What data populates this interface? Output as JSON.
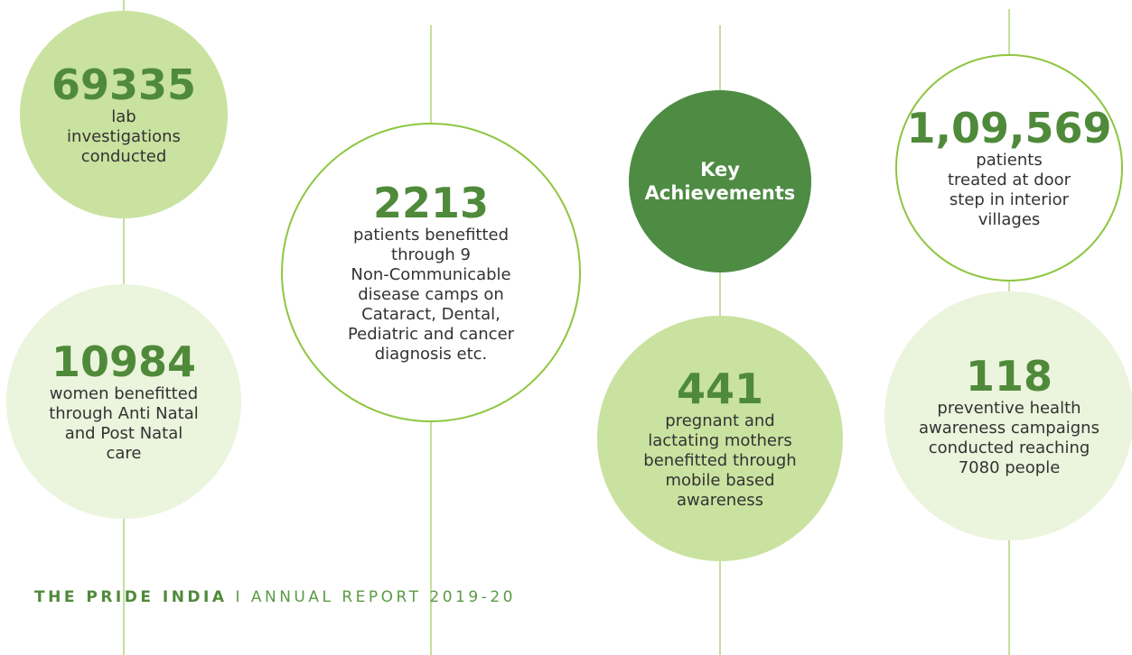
{
  "items": [
    {
      "number": "69335",
      "lines": [
        "lab",
        "investigations",
        "conducted"
      ]
    },
    {
      "number": "10984",
      "lines": [
        "women benefitted",
        "through Anti Natal",
        "and Post Natal",
        "care"
      ]
    },
    {
      "number": "2213",
      "lines": [
        "patients benefitted",
        "through 9",
        "Non-Communicable",
        "disease camps on",
        "Cataract, Dental,",
        "Pediatric and cancer",
        "diagnosis etc."
      ]
    },
    {
      "title_lines": [
        "Key",
        "Achievements"
      ]
    },
    {
      "number": "441",
      "lines": [
        "pregnant and",
        "lactating mothers",
        "benefitted through",
        "mobile based",
        "awareness"
      ]
    },
    {
      "number": "1,09,569",
      "lines": [
        "patients",
        "treated at door",
        "step in interior",
        "villages"
      ]
    },
    {
      "number": "118",
      "lines": [
        "preventive health",
        "awareness campaigns",
        "conducted reaching",
        "7080 people"
      ]
    }
  ],
  "footer": {
    "brand": "THE PRIDE INDIA",
    "separator": "I",
    "report": "ANNUAL REPORT 2019-20"
  }
}
